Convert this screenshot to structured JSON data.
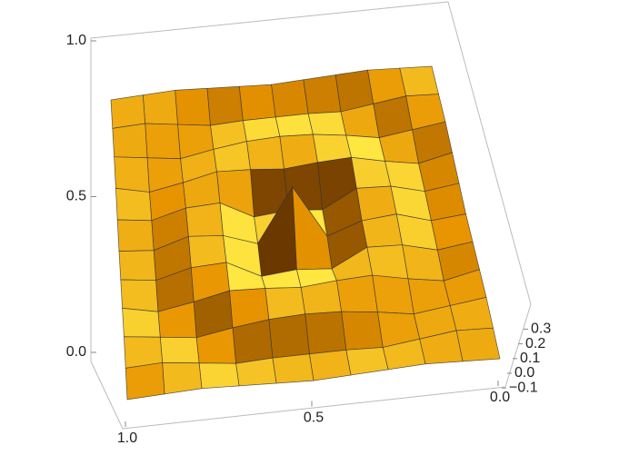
{
  "chart_data": {
    "type": "surface",
    "x": [
      0,
      0.1,
      0.2,
      0.3,
      0.4,
      0.5,
      0.6,
      0.7,
      0.8,
      0.9,
      1
    ],
    "y": [
      0,
      0.1,
      0.2,
      0.3,
      0.4,
      0.5,
      0.6,
      0.7,
      0.8,
      0.9,
      1
    ],
    "z": [
      [
        0.0,
        0.01,
        0.02,
        0.01,
        0.0,
        -0.01,
        0.0,
        0.01,
        0.02,
        0.01,
        0.0
      ],
      [
        0.01,
        0.02,
        -0.01,
        -0.04,
        -0.03,
        -0.03,
        -0.03,
        -0.04,
        -0.01,
        0.02,
        0.01
      ],
      [
        0.02,
        -0.01,
        -0.04,
        0.0,
        0.03,
        0.04,
        0.03,
        0.0,
        -0.04,
        -0.01,
        0.02
      ],
      [
        0.01,
        -0.04,
        0.0,
        0.05,
        0.04,
        0.02,
        0.04,
        0.05,
        0.0,
        -0.04,
        0.01
      ],
      [
        0.0,
        -0.03,
        0.03,
        0.04,
        -0.08,
        -0.06,
        -0.08,
        0.04,
        0.03,
        -0.03,
        0.0
      ],
      [
        -0.01,
        -0.03,
        0.04,
        0.02,
        -0.06,
        0.3,
        -0.06,
        0.02,
        0.04,
        -0.03,
        -0.01
      ],
      [
        0.0,
        -0.03,
        0.03,
        0.04,
        -0.08,
        -0.06,
        -0.08,
        0.04,
        0.03,
        -0.03,
        0.0
      ],
      [
        0.01,
        -0.04,
        0.0,
        0.05,
        0.04,
        0.02,
        0.04,
        0.05,
        0.0,
        -0.04,
        0.01
      ],
      [
        0.02,
        -0.01,
        -0.04,
        0.0,
        0.03,
        0.04,
        0.03,
        0.0,
        -0.04,
        -0.01,
        0.02
      ],
      [
        0.01,
        0.02,
        -0.01,
        -0.04,
        -0.03,
        -0.03,
        -0.03,
        -0.04,
        -0.01,
        0.02,
        0.01
      ],
      [
        0.0,
        0.01,
        0.02,
        0.01,
        0.0,
        -0.01,
        0.0,
        0.01,
        0.02,
        0.01,
        0.0
      ]
    ],
    "xlim": [
      0,
      1
    ],
    "ylim": [
      0,
      1
    ],
    "zlim": [
      -0.1,
      0.3
    ],
    "xticks": [
      {
        "value": 0,
        "label": "0.0"
      },
      0.5,
      {
        "value": 1,
        "label": "1.0"
      }
    ],
    "yticks": [
      {
        "value": 0,
        "label": "0.0"
      },
      0.5,
      {
        "value": 1,
        "label": "1.0"
      }
    ],
    "zticks": [
      {
        "value": -0.1,
        "label": "−0.1"
      },
      {
        "value": 0,
        "label": "0.0"
      },
      0.1,
      0.2,
      0.3
    ],
    "colors": [
      "#6b3800",
      "#e89400",
      "#ffe640"
    ],
    "mesh": true
  }
}
